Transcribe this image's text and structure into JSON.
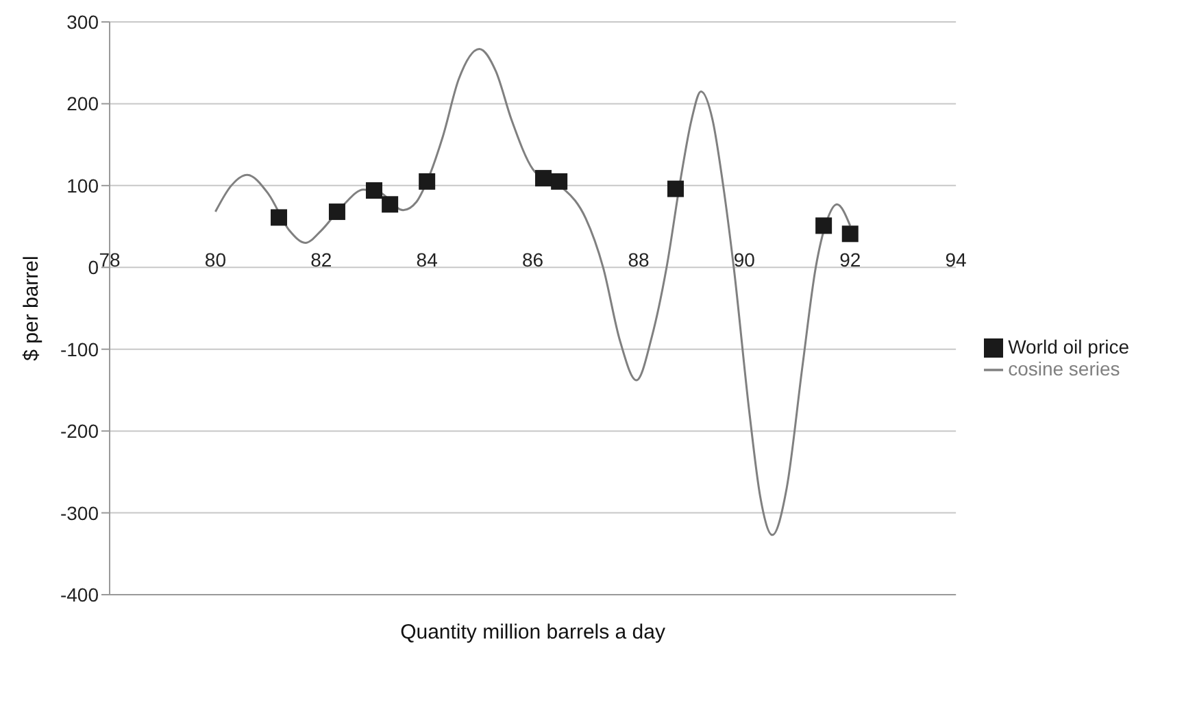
{
  "chart_data": {
    "type": "scatter",
    "xlabel": "Quantity million barrels a day",
    "ylabel": "$ per barrel",
    "xlim": [
      78,
      94
    ],
    "xticks": [
      78,
      80,
      82,
      84,
      86,
      88,
      90,
      92,
      94
    ],
    "ylim": [
      -400,
      300
    ],
    "yticks": [
      -400,
      -300,
      -200,
      -100,
      0,
      100,
      200,
      300
    ],
    "grid": "y",
    "legend": "right",
    "series": [
      {
        "name": "World oil price",
        "color": "#1a1a1a",
        "marker": "square",
        "x": [
          81.2,
          82.3,
          83.0,
          83.3,
          84.0,
          86.2,
          86.5,
          88.7,
          91.5,
          92.0
        ],
        "values": [
          61,
          68,
          94,
          77,
          105,
          109,
          105,
          96,
          51,
          41
        ]
      },
      {
        "name": "cosine series",
        "type": "line",
        "color": "#808080",
        "marker": "none",
        "line_style": "solid",
        "x": [
          80.0,
          80.3,
          80.6,
          81.0,
          81.4,
          81.7,
          82.0,
          82.4,
          82.8,
          83.1,
          83.55,
          83.8,
          84.0,
          84.3,
          84.6,
          84.99,
          85.3,
          85.6,
          86.0,
          86.3,
          86.6,
          87.0,
          87.33,
          87.65,
          87.96,
          88.25,
          88.53,
          88.8,
          89.0,
          89.18,
          89.4,
          89.6,
          89.8,
          90.1,
          90.3,
          90.53,
          90.8,
          91.1,
          91.35,
          91.55,
          91.75,
          92.0
        ],
        "values": [
          68,
          100,
          113,
          90,
          45,
          30,
          45,
          75,
          95,
          92,
          70,
          80,
          105,
          160,
          230,
          267,
          240,
          180,
          120,
          105,
          95,
          60,
          0,
          -90,
          -138,
          -85,
          0,
          110,
          180,
          215,
          180,
          100,
          0,
          -180,
          -280,
          -327,
          -270,
          -120,
          0,
          55,
          77,
          51
        ]
      }
    ]
  }
}
